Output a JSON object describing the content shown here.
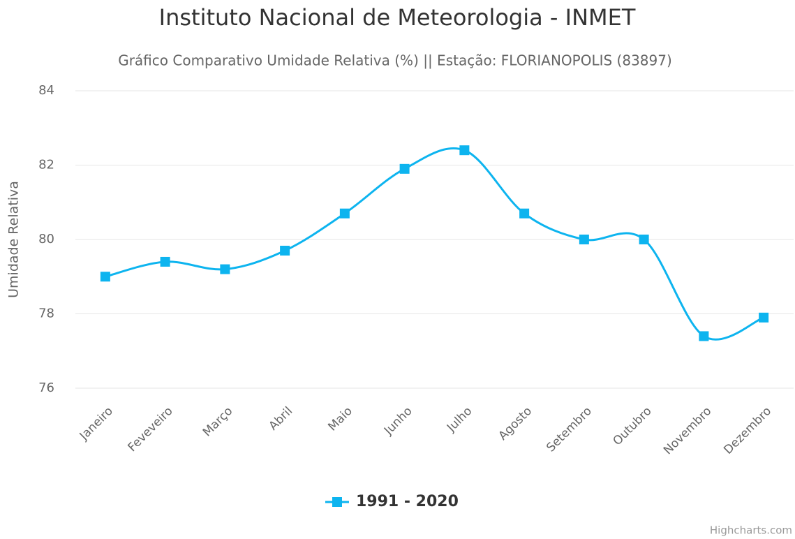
{
  "chart_data": {
    "type": "spline",
    "title": "Instituto Nacional de Meteorologia - INMET",
    "subtitle": "Gráfico Comparativo Umidade Relativa (%) || Estação: FLORIANOPOLIS (83897)",
    "y_axis_label": "Umidade Relativa",
    "categories": [
      "Janeiro",
      "Feveveiro",
      "Março",
      "Abril",
      "Maio",
      "Junho",
      "Julho",
      "Agosto",
      "Setembro",
      "Outubro",
      "Novembro",
      "Dezembro"
    ],
    "series": [
      {
        "name": "1991 - 2020",
        "color": "#0db4ef",
        "values": [
          79.0,
          79.4,
          79.2,
          79.7,
          80.7,
          81.9,
          82.4,
          80.7,
          80.0,
          80.0,
          77.4,
          77.9
        ]
      }
    ],
    "ylim": [
      76,
      84
    ],
    "yticks": [
      76,
      78,
      80,
      82,
      84
    ],
    "grid": true,
    "legend": "bottom",
    "credits": "Highcharts.com"
  }
}
